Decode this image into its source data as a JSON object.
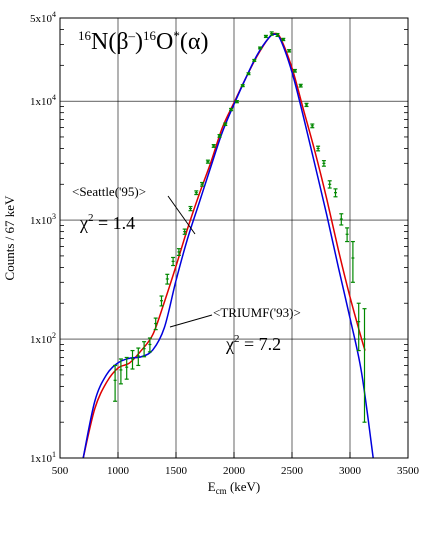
{
  "chart_data": {
    "type": "line",
    "title_parts": {
      "pre_a": "16",
      "n": "N(",
      "beta": "β",
      "minus": "–",
      "mid": ")",
      "pre_b": "16",
      "o": "O",
      "star": "*",
      "alpha": "(α)"
    },
    "xlabel": "E",
    "xlabel_sub": "cm",
    "xlabel_unit": " (keV)",
    "ylabel": "Counts / 67 keV",
    "xlim": [
      500,
      3500
    ],
    "ylim": [
      10,
      50000
    ],
    "yscale": "log",
    "grid": true,
    "x_ticks": [
      "500",
      "1000",
      "1500",
      "2000",
      "2500",
      "3000",
      "3500"
    ],
    "y_ticks": [
      {
        "value": 10,
        "base": "1x10",
        "exp": "1"
      },
      {
        "value": 100,
        "base": "1x10",
        "exp": "2"
      },
      {
        "value": 1000,
        "base": "1x10",
        "exp": "3"
      },
      {
        "value": 10000,
        "base": "1x10",
        "exp": "4"
      },
      {
        "value": 50000,
        "base": "5x10",
        "exp": "4"
      }
    ],
    "series": [
      {
        "color": "#e00000",
        "x": [
          700,
          800,
          900,
          1000,
          1100,
          1200,
          1300,
          1400,
          1500,
          1600,
          1700,
          1800,
          1900,
          2000,
          2100,
          2200,
          2300,
          2350,
          2400,
          2500,
          2600,
          2700,
          2800,
          2900,
          3000,
          3100,
          3130
        ],
        "y": [
          10,
          26,
          43,
          57,
          63,
          80,
          109,
          205,
          410,
          850,
          1650,
          3050,
          6000,
          9700,
          15500,
          24000,
          34000,
          37000,
          34000,
          19000,
          8400,
          3700,
          1500,
          560,
          226,
          100,
          80
        ]
      },
      {
        "color": "#0000dd",
        "x": [
          700,
          800,
          900,
          1000,
          1100,
          1200,
          1300,
          1400,
          1500,
          1600,
          1700,
          1800,
          1900,
          2000,
          2100,
          2200,
          2300,
          2350,
          2400,
          2500,
          2600,
          2700,
          2800,
          2900,
          3000,
          3100,
          3200
        ],
        "y": [
          10,
          30,
          50,
          63,
          69,
          71,
          81,
          125,
          310,
          700,
          1400,
          2800,
          5500,
          9400,
          15500,
          24500,
          34000,
          36500,
          33000,
          17500,
          7300,
          2850,
          1100,
          400,
          150,
          52,
          10
        ]
      }
    ],
    "data_points": {
      "color": "#008800",
      "x": [
        975,
        1025,
        1075,
        1125,
        1175,
        1225,
        1275,
        1325,
        1375,
        1425,
        1475,
        1525,
        1575,
        1625,
        1675,
        1725,
        1775,
        1825,
        1875,
        1925,
        1975,
        2025,
        2075,
        2125,
        2175,
        2225,
        2275,
        2325,
        2375,
        2425,
        2475,
        2525,
        2575,
        2625,
        2675,
        2725,
        2775,
        2825,
        2875,
        2925,
        2975,
        3025,
        3075,
        3125
      ],
      "y": [
        45,
        55,
        58,
        68,
        72,
        83,
        90,
        135,
        210,
        320,
        450,
        540,
        800,
        1250,
        1700,
        2000,
        3100,
        4200,
        5100,
        6400,
        8500,
        9900,
        13500,
        17000,
        22000,
        28000,
        35000,
        37000,
        36000,
        33000,
        26500,
        18000,
        13500,
        9300,
        6200,
        4000,
        3000,
        2000,
        1700,
        1020,
        760,
        480,
        140,
        100
      ],
      "err": [
        15,
        13,
        12,
        12,
        12,
        12,
        12,
        15,
        20,
        30,
        35,
        35,
        40,
        50,
        60,
        70,
        90,
        110,
        130,
        150,
        180,
        200,
        250,
        300,
        400,
        500,
        700,
        1200,
        1000,
        700,
        600,
        450,
        350,
        280,
        220,
        180,
        160,
        140,
        130,
        110,
        100,
        180,
        60,
        80
      ]
    },
    "annotations": [
      {
        "label": "<Seattle('95)>",
        "chi": "χ",
        "sup": "2",
        "value": " = 1.4"
      },
      {
        "label": "<TRIUMF('93)>",
        "chi": "χ",
        "sup": "2",
        "value": " = 7.2"
      }
    ]
  }
}
